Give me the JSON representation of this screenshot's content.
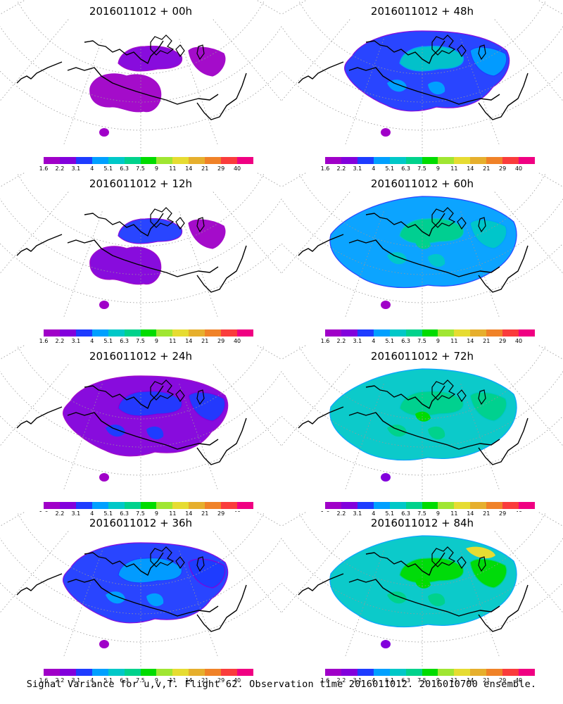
{
  "footer": "Signal Variance for u,v,T. Flight 62. Observation time 2016011012. 2016010700 ensemble.",
  "colorbar": {
    "colors": [
      "#a000c8",
      "#8200dc",
      "#1e3cff",
      "#00a0ff",
      "#00c8c8",
      "#00d28c",
      "#00dc00",
      "#a0e632",
      "#e6dc32",
      "#e6af2d",
      "#f08228",
      "#fa3c3c",
      "#f00082"
    ],
    "labels": [
      "1.6",
      "2.2",
      "3.1",
      "4",
      "5.1",
      "6.3",
      "7.5",
      "9",
      "11",
      "14",
      "21",
      "29",
      "40"
    ]
  },
  "panels": [
    {
      "id": "p00",
      "title": "2016011012 + 00h",
      "level": 0
    },
    {
      "id": "p48",
      "title": "2016011012 + 48h",
      "level": 4
    },
    {
      "id": "p12",
      "title": "2016011012 + 12h",
      "level": 1
    },
    {
      "id": "p60",
      "title": "2016011012 + 60h",
      "level": 5
    },
    {
      "id": "p24",
      "title": "2016011012 + 24h",
      "level": 2
    },
    {
      "id": "p72",
      "title": "2016011012 + 72h",
      "level": 6
    },
    {
      "id": "p36",
      "title": "2016011012 + 36h",
      "level": 3
    },
    {
      "id": "p84",
      "title": "2016011012 + 84h",
      "level": 7
    }
  ]
}
